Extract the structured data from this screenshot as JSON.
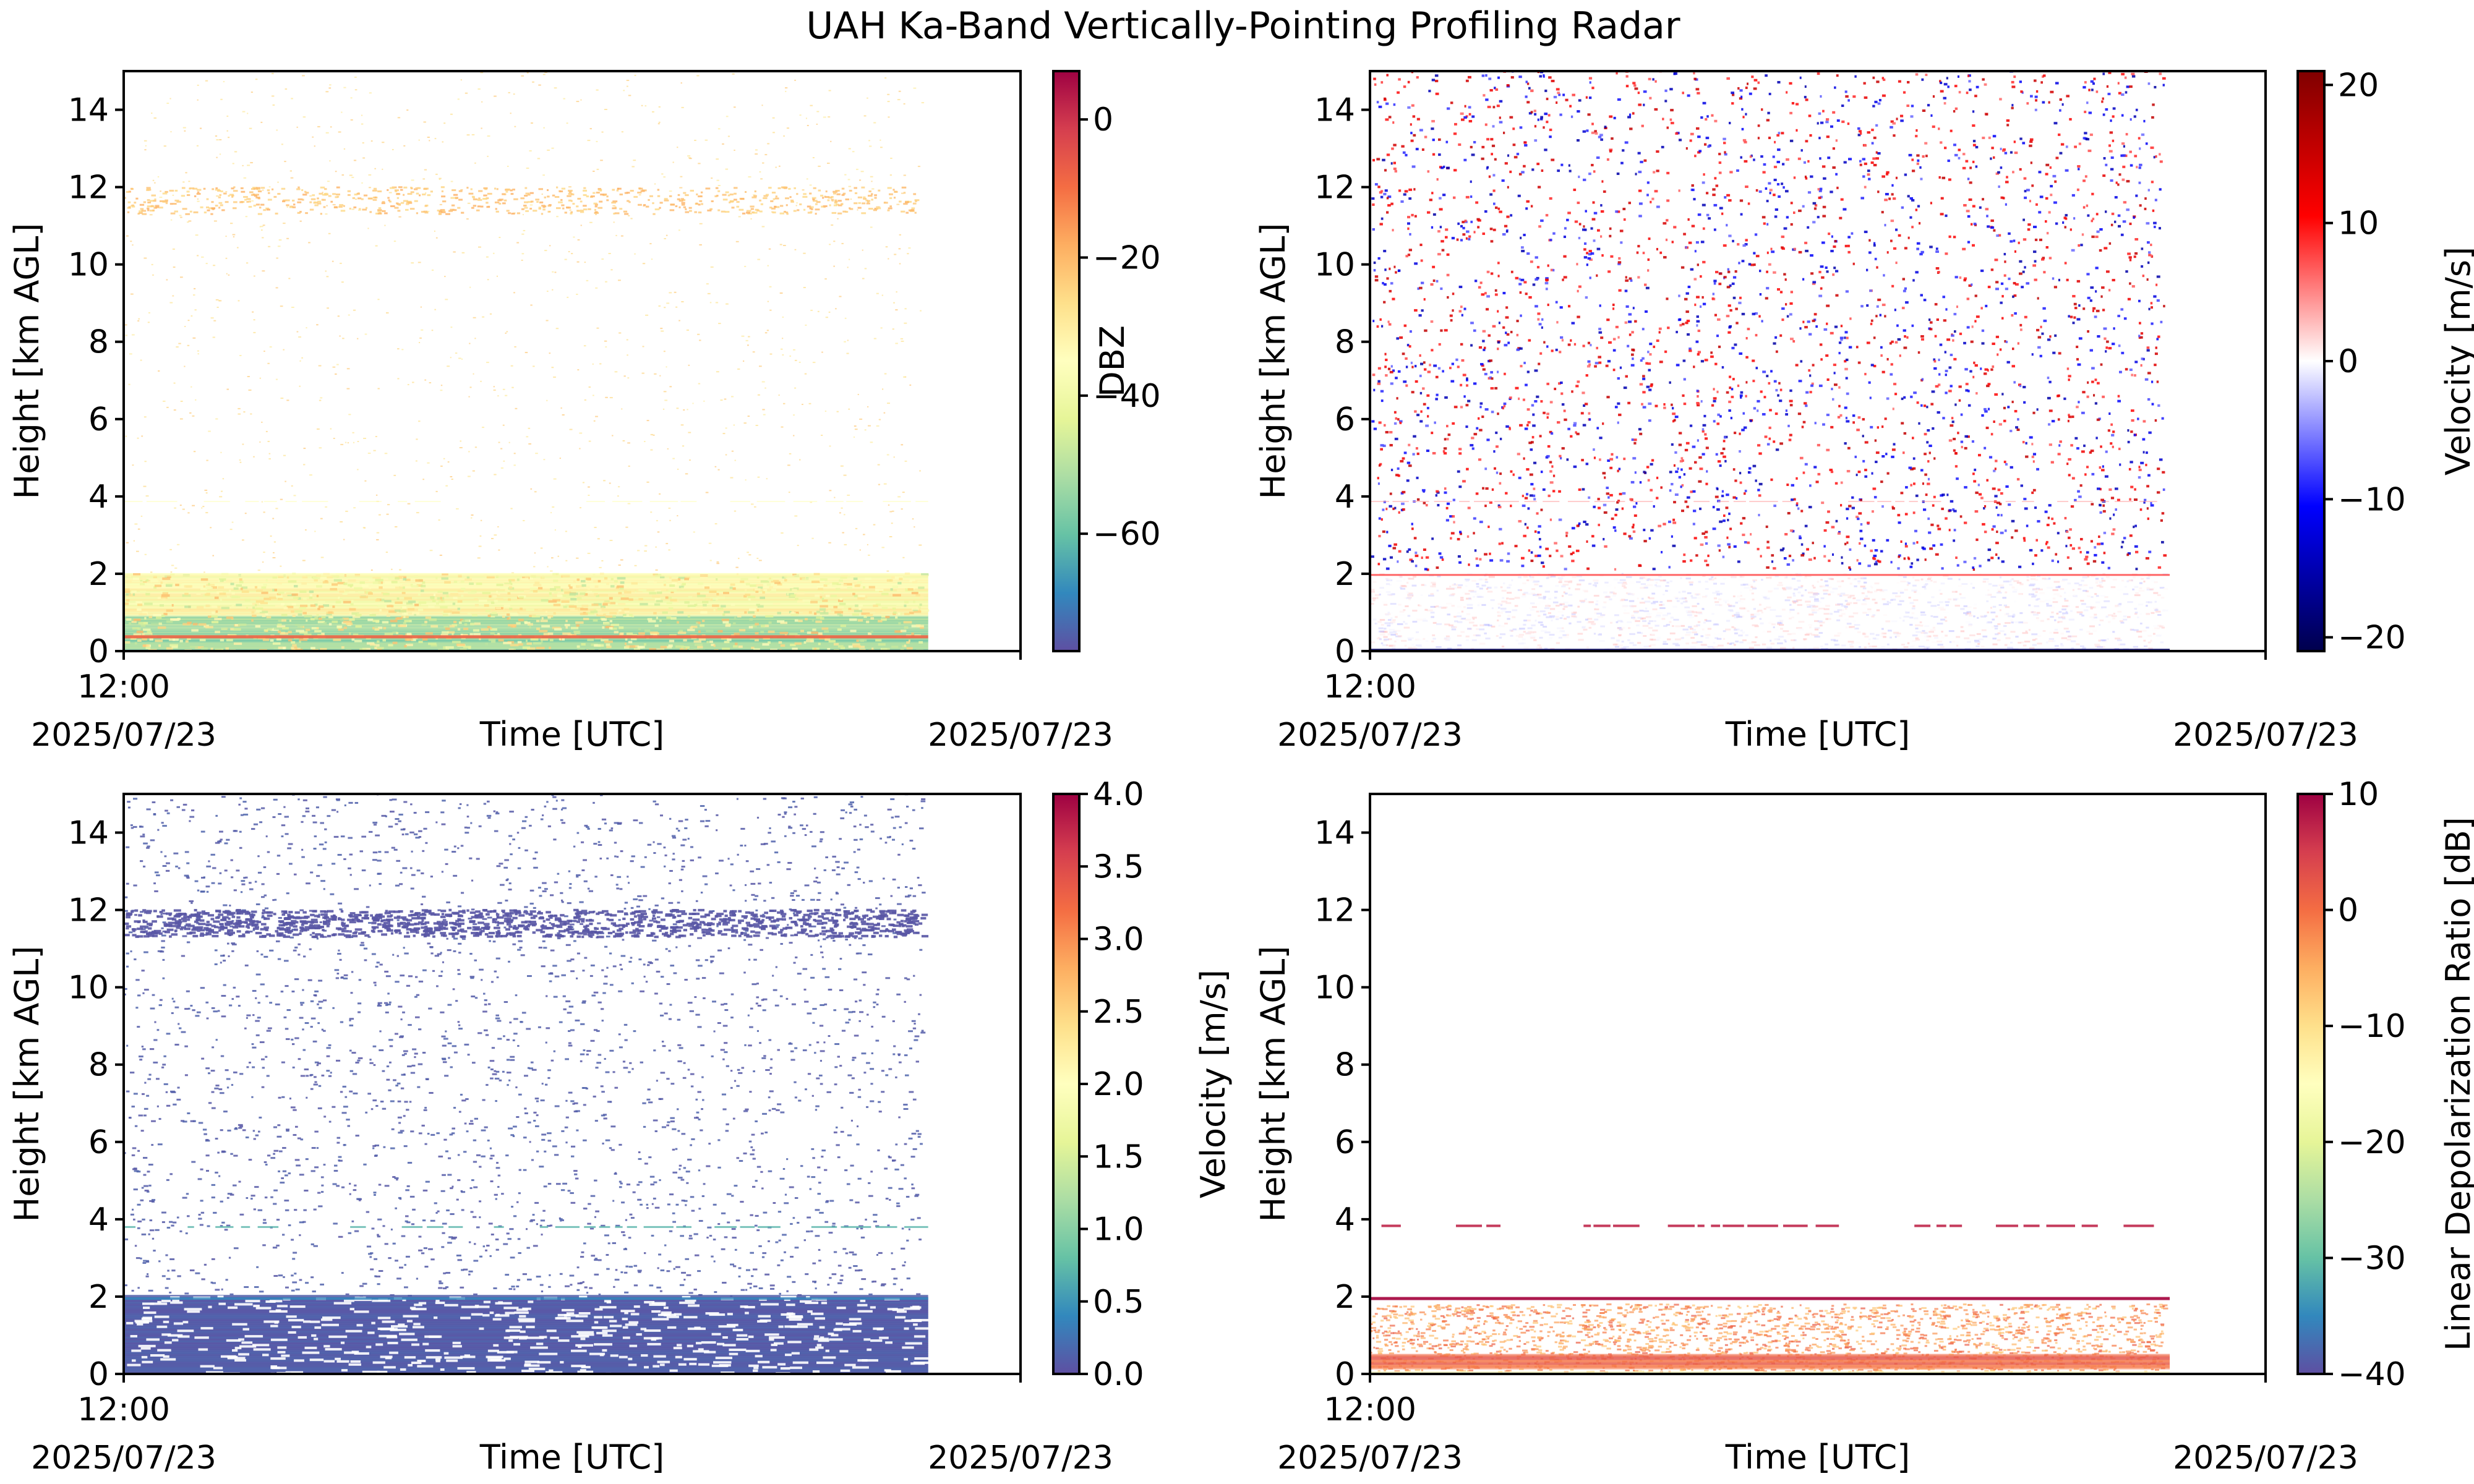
{
  "figure_title": "UAH Ka-Band Vertically-Pointing Profiling Radar",
  "chart_data": [
    {
      "type": "heatmap",
      "ylabel": "Height [km AGL]",
      "xlabel": "Time [UTC]",
      "ylim": [
        0,
        15
      ],
      "yticks": [
        "0",
        "2",
        "4",
        "6",
        "8",
        "10",
        "12",
        "14"
      ],
      "x_ticks": [
        {
          "time": "12:00",
          "date": "2025/07/23"
        },
        {
          "time": "",
          "date": "2025/07/23"
        }
      ],
      "data_end_fraction": 0.897,
      "colorbar": {
        "label": "DBZ",
        "colormap": "Spectral_r",
        "range": [
          -77,
          7
        ],
        "ticks": [
          "0",
          "−20",
          "−40",
          "−60"
        ],
        "tick_values": [
          0,
          -20,
          -40,
          -60
        ]
      },
      "layers": [
        {
          "feature": "cirrus band",
          "height_km": [
            11.3,
            12.0
          ],
          "value": -28
        },
        {
          "feature": "sparse noise aloft",
          "height_km": [
            2,
            15
          ],
          "value": -30
        },
        {
          "feature": "faint echo line",
          "height_km": [
            3.85,
            3.9
          ],
          "value": -35
        },
        {
          "feature": "boundary layer echo",
          "height_km": [
            0,
            2
          ],
          "value": -45
        },
        {
          "feature": "strong near-surface line",
          "height_km": [
            0.35,
            0.4
          ],
          "value": -5
        }
      ]
    },
    {
      "type": "heatmap",
      "ylabel": "Height [km AGL]",
      "xlabel": "Time [UTC]",
      "ylim": [
        0,
        15
      ],
      "yticks": [
        "0",
        "2",
        "4",
        "6",
        "8",
        "10",
        "12",
        "14"
      ],
      "x_ticks": [
        {
          "time": "12:00",
          "date": "2025/07/23"
        },
        {
          "time": "",
          "date": "2025/07/23"
        }
      ],
      "data_end_fraction": 0.893,
      "colorbar": {
        "label": "Velocity [m/s]",
        "colormap": "seismic",
        "range": [
          -21,
          21
        ],
        "ticks": [
          "20",
          "10",
          "0",
          "−10",
          "−20"
        ],
        "tick_values": [
          20,
          10,
          0,
          -10,
          -20
        ]
      },
      "layers": [
        {
          "feature": "random noise velocities",
          "height_km": [
            0,
            15
          ],
          "value": 0
        },
        {
          "feature": "line at 2 km",
          "height_km": [
            1.95,
            2.0
          ],
          "value": 6
        },
        {
          "feature": "faint line at 3.9 km",
          "height_km": [
            3.85,
            3.9
          ],
          "value": 3
        },
        {
          "feature": "surface line",
          "height_km": [
            0,
            0.05
          ],
          "value": -20
        }
      ]
    },
    {
      "type": "heatmap",
      "ylabel": "Height [km AGL]",
      "xlabel": "Time [UTC]",
      "ylim": [
        0,
        15
      ],
      "yticks": [
        "0",
        "2",
        "4",
        "6",
        "8",
        "10",
        "12",
        "14"
      ],
      "x_ticks": [
        {
          "time": "12:00",
          "date": "2025/07/23"
        },
        {
          "time": "",
          "date": "2025/07/23"
        }
      ],
      "data_end_fraction": 0.897,
      "colorbar": {
        "label": "Velocity [m/s]",
        "colormap": "Spectral_r",
        "range": [
          0,
          4
        ],
        "ticks": [
          "4.0",
          "3.5",
          "3.0",
          "2.5",
          "2.0",
          "1.5",
          "1.0",
          "0.5",
          "0.0"
        ],
        "tick_values": [
          4.0,
          3.5,
          3.0,
          2.5,
          2.0,
          1.5,
          1.0,
          0.5,
          0.0
        ]
      },
      "layers": [
        {
          "feature": "cirrus band",
          "height_km": [
            11.3,
            12.0
          ],
          "value": 0.1
        },
        {
          "feature": "sparse noise aloft",
          "height_km": [
            2,
            15
          ],
          "value": 0.1
        },
        {
          "feature": "line at 3.8 km",
          "height_km": [
            3.75,
            3.85
          ],
          "value": 0.6
        },
        {
          "feature": "boundary layer",
          "height_km": [
            0,
            2
          ],
          "value": 0.1
        }
      ]
    },
    {
      "type": "heatmap",
      "ylabel": "Height [km AGL]",
      "xlabel": "Time [UTC]",
      "ylim": [
        0,
        15
      ],
      "yticks": [
        "0",
        "2",
        "4",
        "6",
        "8",
        "10",
        "12",
        "14"
      ],
      "x_ticks": [
        {
          "time": "12:00",
          "date": "2025/07/23"
        },
        {
          "time": "",
          "date": "2025/07/23"
        }
      ],
      "data_end_fraction": 0.893,
      "colorbar": {
        "label": "Linear Depolarization Ratio [dB]",
        "colormap": "Spectral_r",
        "range": [
          -40,
          10
        ],
        "ticks": [
          "10",
          "0",
          "−10",
          "−20",
          "−30",
          "−40"
        ],
        "tick_values": [
          10,
          0,
          -10,
          -20,
          -30,
          -40
        ]
      },
      "layers": [
        {
          "feature": "dashed line at 3.8 km",
          "height_km": [
            3.8,
            3.85
          ],
          "value": 8
        },
        {
          "feature": "solid line at 1.95 km",
          "height_km": [
            1.92,
            1.97
          ],
          "value": 10
        },
        {
          "feature": "boundary layer echo",
          "height_km": [
            0,
            1.8
          ],
          "value": -5
        },
        {
          "feature": "near-surface band",
          "height_km": [
            0.2,
            0.5
          ],
          "value": 0
        }
      ]
    }
  ]
}
